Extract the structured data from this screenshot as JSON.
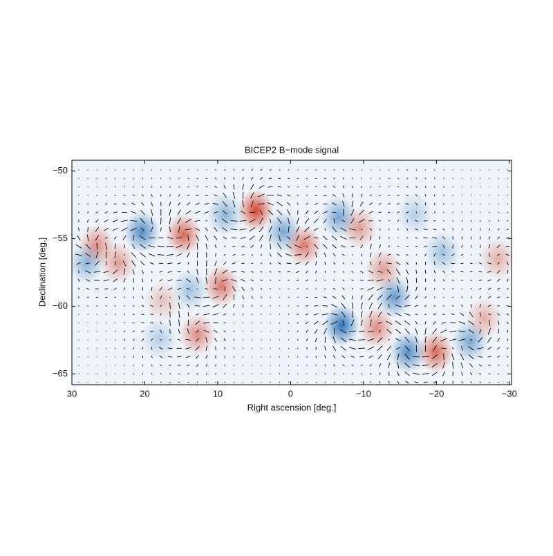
{
  "chart_data": {
    "type": "polarization-map",
    "title": "BICEP2 B−mode signal",
    "x_label": "Right ascension [deg.]",
    "y_label": "Declination [deg.]",
    "xlim": [
      30,
      -30.3
    ],
    "ylim": [
      -65.8,
      -49.2
    ],
    "xticks": [
      30,
      20,
      10,
      0,
      {
        "value": -10,
        "label": "−10"
      },
      {
        "value": -20,
        "label": "−20"
      },
      {
        "value": -30,
        "label": "−30"
      }
    ],
    "yticks": [
      {
        "value": -50,
        "label": "−50"
      },
      {
        "value": -55,
        "label": "−55"
      },
      {
        "value": -60,
        "label": "−60"
      },
      {
        "value": -65,
        "label": "−65"
      }
    ],
    "positive_color": "#d6452e",
    "negative_color": "#2a72b5",
    "x": [
      4.8,
      14.7,
      26.6,
      20.4,
      28,
      23.7,
      1,
      9,
      -1.8,
      9.5,
      13.8,
      12.8,
      -7,
      -6.6,
      -9.4,
      -12.7,
      -11.8,
      -14.2,
      -16.1,
      -19.9,
      -24.6,
      -20.8,
      -28.4,
      -26.5,
      18,
      17.6,
      -17
    ],
    "y": [
      -52.9,
      -54.7,
      -55.5,
      -54.5,
      -56.8,
      -56.8,
      -54.5,
      -53.2,
      -55.5,
      -58.5,
      -58.8,
      -62.1,
      -61.4,
      -53.4,
      -54.2,
      -57.3,
      -61.6,
      -59.3,
      -63.4,
      -63.4,
      -62.6,
      -56,
      -56.5,
      -60.9,
      -62.4,
      -59.6,
      -53.2
    ],
    "values": [
      1,
      0.8,
      0.6,
      -0.8,
      -0.5,
      0.5,
      -0.6,
      -0.5,
      0.7,
      0.7,
      -0.4,
      0.6,
      -1,
      -0.6,
      0.5,
      0.5,
      0.6,
      -0.7,
      -0.8,
      0.8,
      -0.6,
      -0.4,
      0.4,
      0.4,
      -0.3,
      0.3,
      -0.3
    ]
  }
}
